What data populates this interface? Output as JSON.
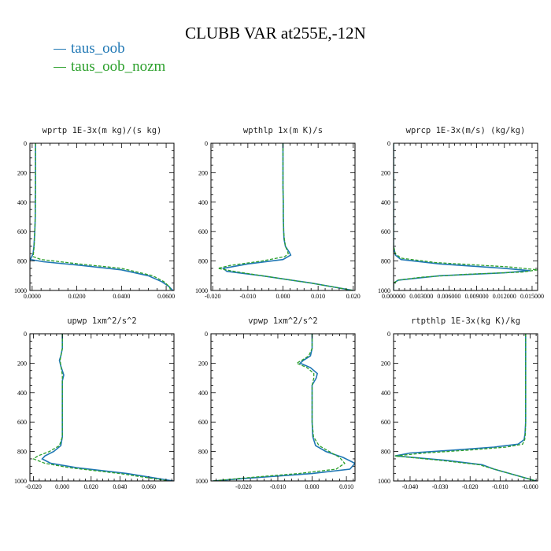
{
  "title": "CLUBB VAR at255E,-12N",
  "legend": [
    {
      "name": "taus_oob",
      "color": "#1f77b4"
    },
    {
      "name": "taus_oob_nozm",
      "color": "#2ca02c"
    }
  ],
  "chart_data": [
    {
      "type": "line",
      "title": "wprtp  1E-3x(m kg)/(s kg)",
      "xlim": [
        -0.001,
        0.0635
      ],
      "ylim": [
        1000,
        0
      ],
      "xticks": [
        0.0,
        0.02,
        0.04,
        0.06
      ],
      "xtick_labels": [
        "0.0000",
        "0.0200",
        "0.0400",
        "0.0600"
      ],
      "yticks": [
        0,
        200,
        400,
        600,
        800,
        1000
      ],
      "ytick_labels": [
        "0",
        "200",
        "400",
        "600",
        "800",
        "1000"
      ],
      "series": [
        {
          "name": "taus_oob",
          "y": [
            0,
            100,
            200,
            300,
            400,
            500,
            600,
            700,
            750,
            790,
            805,
            830,
            860,
            900,
            940,
            970,
            1000
          ],
          "x": [
            0.0015,
            0.0015,
            0.0015,
            0.0015,
            0.0014,
            0.0014,
            0.0012,
            0.0008,
            0.0004,
            -0.0008,
            0.005,
            0.022,
            0.04,
            0.052,
            0.058,
            0.061,
            0.063
          ]
        },
        {
          "name": "taus_oob_nozm",
          "y": [
            0,
            100,
            200,
            300,
            400,
            500,
            600,
            700,
            750,
            770,
            790,
            820,
            850,
            900,
            940,
            975,
            1000
          ],
          "x": [
            0.0015,
            0.0015,
            0.0015,
            0.0015,
            0.0015,
            0.0014,
            0.0012,
            0.0009,
            0.0006,
            0.0004,
            0.004,
            0.021,
            0.04,
            0.054,
            0.059,
            0.0615,
            0.062
          ]
        }
      ]
    },
    {
      "type": "line",
      "title": "wpthlp  1x(m K)/s",
      "xlim": [
        -0.0205,
        0.0205
      ],
      "ylim": [
        1000,
        0
      ],
      "xticks": [
        -0.02,
        -0.01,
        0.0,
        0.01,
        0.02
      ],
      "xtick_labels": [
        "-0.020",
        "-0.010",
        "0.000",
        "0.010",
        "0.020"
      ],
      "yticks": [
        0,
        200,
        400,
        600,
        800,
        1000
      ],
      "ytick_labels": [
        "0",
        "200",
        "400",
        "600",
        "800",
        "1000"
      ],
      "series": [
        {
          "name": "taus_oob",
          "y": [
            0,
            100,
            200,
            300,
            400,
            500,
            600,
            650,
            700,
            740,
            760,
            790,
            820,
            850,
            870,
            900,
            950,
            1000
          ],
          "x": [
            0.0,
            0.0,
            0.0,
            0.0,
            0.0001,
            0.0001,
            0.0002,
            0.0003,
            0.0007,
            0.0018,
            0.0022,
            0.0,
            -0.01,
            -0.017,
            -0.016,
            -0.006,
            0.008,
            0.02
          ]
        },
        {
          "name": "taus_oob_nozm",
          "y": [
            0,
            100,
            200,
            300,
            400,
            500,
            600,
            650,
            700,
            735,
            750,
            770,
            800,
            830,
            850,
            870,
            900,
            950,
            1000
          ],
          "x": [
            0.0,
            0.0,
            0.0,
            0.0,
            0.0001,
            0.0001,
            0.0002,
            0.0004,
            0.0007,
            0.0013,
            0.0015,
            0.0005,
            -0.006,
            -0.015,
            -0.0185,
            -0.014,
            -0.006,
            0.008,
            0.02
          ]
        }
      ]
    },
    {
      "type": "line",
      "title": "wprcp  1E-3x(m/s) (kg/kg)",
      "xlim": [
        0.0,
        0.0156
      ],
      "ylim": [
        1000,
        0
      ],
      "xticks": [
        0.0,
        0.003,
        0.006,
        0.009,
        0.012,
        0.015
      ],
      "xtick_labels": [
        "0.000000",
        "0.003000",
        "0.006000",
        "0.009000",
        "0.012000",
        "0.015000"
      ],
      "yticks": [
        0,
        200,
        400,
        600,
        800,
        1000
      ],
      "ytick_labels": [
        "0",
        "200",
        "400",
        "600",
        "800",
        "1000"
      ],
      "series": [
        {
          "name": "taus_oob",
          "y": [
            0,
            200,
            400,
            600,
            700,
            760,
            790,
            820,
            850,
            865,
            880,
            900,
            930,
            950,
            1000
          ],
          "x": [
            0.0,
            0.0,
            0.0,
            0.0,
            0.0,
            0.0002,
            0.0008,
            0.005,
            0.012,
            0.0148,
            0.012,
            0.005,
            0.0005,
            0.0,
            0.0
          ]
        },
        {
          "name": "taus_oob_nozm",
          "y": [
            0,
            200,
            400,
            600,
            700,
            750,
            780,
            810,
            840,
            860,
            875,
            890,
            910,
            930,
            950,
            1000
          ],
          "x": [
            0.0,
            0.0,
            0.0,
            0.0,
            0.0,
            0.0002,
            0.0008,
            0.0045,
            0.0125,
            0.0156,
            0.014,
            0.008,
            0.003,
            0.0005,
            0.0,
            0.0
          ]
        }
      ]
    },
    {
      "type": "line",
      "title": "upwp   1xm^2/s^2",
      "xlim": [
        -0.0225,
        0.0775
      ],
      "ylim": [
        1000,
        0
      ],
      "xticks": [
        -0.02,
        0.0,
        0.02,
        0.04,
        0.06
      ],
      "xtick_labels": [
        "-0.020",
        "0.000",
        "0.020",
        "0.040",
        "0.060"
      ],
      "yticks": [
        0,
        200,
        400,
        600,
        800,
        1000
      ],
      "ytick_labels": [
        "0",
        "200",
        "400",
        "600",
        "800",
        "1000"
      ],
      "series": [
        {
          "name": "taus_oob",
          "y": [
            0,
            100,
            150,
            180,
            220,
            280,
            320,
            400,
            500,
            600,
            700,
            760,
            800,
            830,
            850,
            880,
            910,
            950,
            1000
          ],
          "x": [
            0.0,
            0.0,
            -0.001,
            -0.002,
            -0.001,
            0.001,
            0.0,
            0.0,
            0.0,
            0.0,
            0.0,
            -0.001,
            -0.006,
            -0.012,
            -0.014,
            -0.008,
            0.01,
            0.045,
            0.077
          ]
        },
        {
          "name": "taus_oob_nozm",
          "y": [
            0,
            100,
            150,
            180,
            220,
            280,
            320,
            400,
            500,
            600,
            700,
            760,
            800,
            830,
            850,
            880,
            910,
            950,
            1000
          ],
          "x": [
            0.0,
            0.0,
            -0.001,
            -0.0015,
            -0.001,
            0.0,
            0.0,
            0.0,
            0.0,
            0.0,
            0.0,
            -0.002,
            -0.009,
            -0.017,
            -0.02,
            -0.012,
            0.005,
            0.04,
            0.074
          ]
        }
      ]
    },
    {
      "type": "line",
      "title": "vpwp   1xm^2/s^2",
      "xlim": [
        -0.0295,
        0.0125
      ],
      "ylim": [
        1000,
        0
      ],
      "xticks": [
        -0.02,
        -0.01,
        0.0,
        0.01
      ],
      "xtick_labels": [
        "-0.020",
        "-0.010",
        "0.000",
        "0.010"
      ],
      "yticks": [
        0,
        200,
        400,
        600,
        800,
        1000
      ],
      "ytick_labels": [
        "0",
        "200",
        "400",
        "600",
        "800",
        "1000"
      ],
      "series": [
        {
          "name": "taus_oob",
          "y": [
            0,
            100,
            150,
            180,
            200,
            230,
            270,
            300,
            350,
            400,
            500,
            600,
            700,
            760,
            800,
            840,
            880,
            920,
            950,
            980,
            1000
          ],
          "x": [
            0.0,
            0.0,
            -0.0005,
            -0.0025,
            -0.0035,
            -0.0005,
            0.0015,
            0.0012,
            0.0,
            0.0,
            0.0,
            0.0,
            0.0002,
            0.001,
            0.004,
            0.009,
            0.0125,
            0.011,
            0.0,
            -0.018,
            -0.029
          ]
        },
        {
          "name": "taus_oob_nozm",
          "y": [
            0,
            100,
            150,
            180,
            200,
            230,
            270,
            300,
            350,
            400,
            500,
            600,
            700,
            760,
            800,
            840,
            880,
            920,
            950,
            980,
            1000
          ],
          "x": [
            0.0,
            0.0,
            -0.001,
            -0.003,
            -0.0045,
            -0.0015,
            0.0005,
            0.0005,
            0.0,
            0.0,
            0.0,
            0.0,
            0.0004,
            0.002,
            0.005,
            0.008,
            0.0095,
            0.007,
            -0.004,
            -0.02,
            -0.029
          ]
        }
      ]
    },
    {
      "type": "line",
      "title": "rtpthlp  1E-3x(kg K)/kg",
      "xlim": [
        -0.0455,
        0.0025
      ],
      "ylim": [
        1000,
        0
      ],
      "xticks": [
        -0.04,
        -0.03,
        -0.02,
        -0.01,
        0.0
      ],
      "xtick_labels": [
        "-0.040",
        "-0.030",
        "-0.020",
        "-0.010",
        "-0.000"
      ],
      "yticks": [
        0,
        200,
        400,
        600,
        800,
        1000
      ],
      "ytick_labels": [
        "0",
        "200",
        "400",
        "600",
        "800",
        "1000"
      ],
      "series": [
        {
          "name": "taus_oob",
          "y": [
            0,
            200,
            400,
            600,
            680,
            720,
            750,
            770,
            790,
            810,
            830,
            860,
            890,
            920,
            960,
            1000
          ],
          "x": [
            -0.0015,
            -0.0015,
            -0.0015,
            -0.0015,
            -0.0017,
            -0.002,
            -0.004,
            -0.012,
            -0.025,
            -0.04,
            -0.045,
            -0.028,
            -0.016,
            -0.012,
            -0.005,
            0.002
          ]
        },
        {
          "name": "taus_oob_nozm",
          "y": [
            0,
            200,
            400,
            600,
            680,
            720,
            750,
            770,
            790,
            810,
            830,
            860,
            890,
            920,
            960,
            1000
          ],
          "x": [
            -0.0015,
            -0.0015,
            -0.0015,
            -0.0015,
            -0.0016,
            -0.0018,
            -0.0025,
            -0.008,
            -0.02,
            -0.035,
            -0.045,
            -0.03,
            -0.017,
            -0.012,
            -0.005,
            0.002
          ]
        }
      ]
    }
  ]
}
